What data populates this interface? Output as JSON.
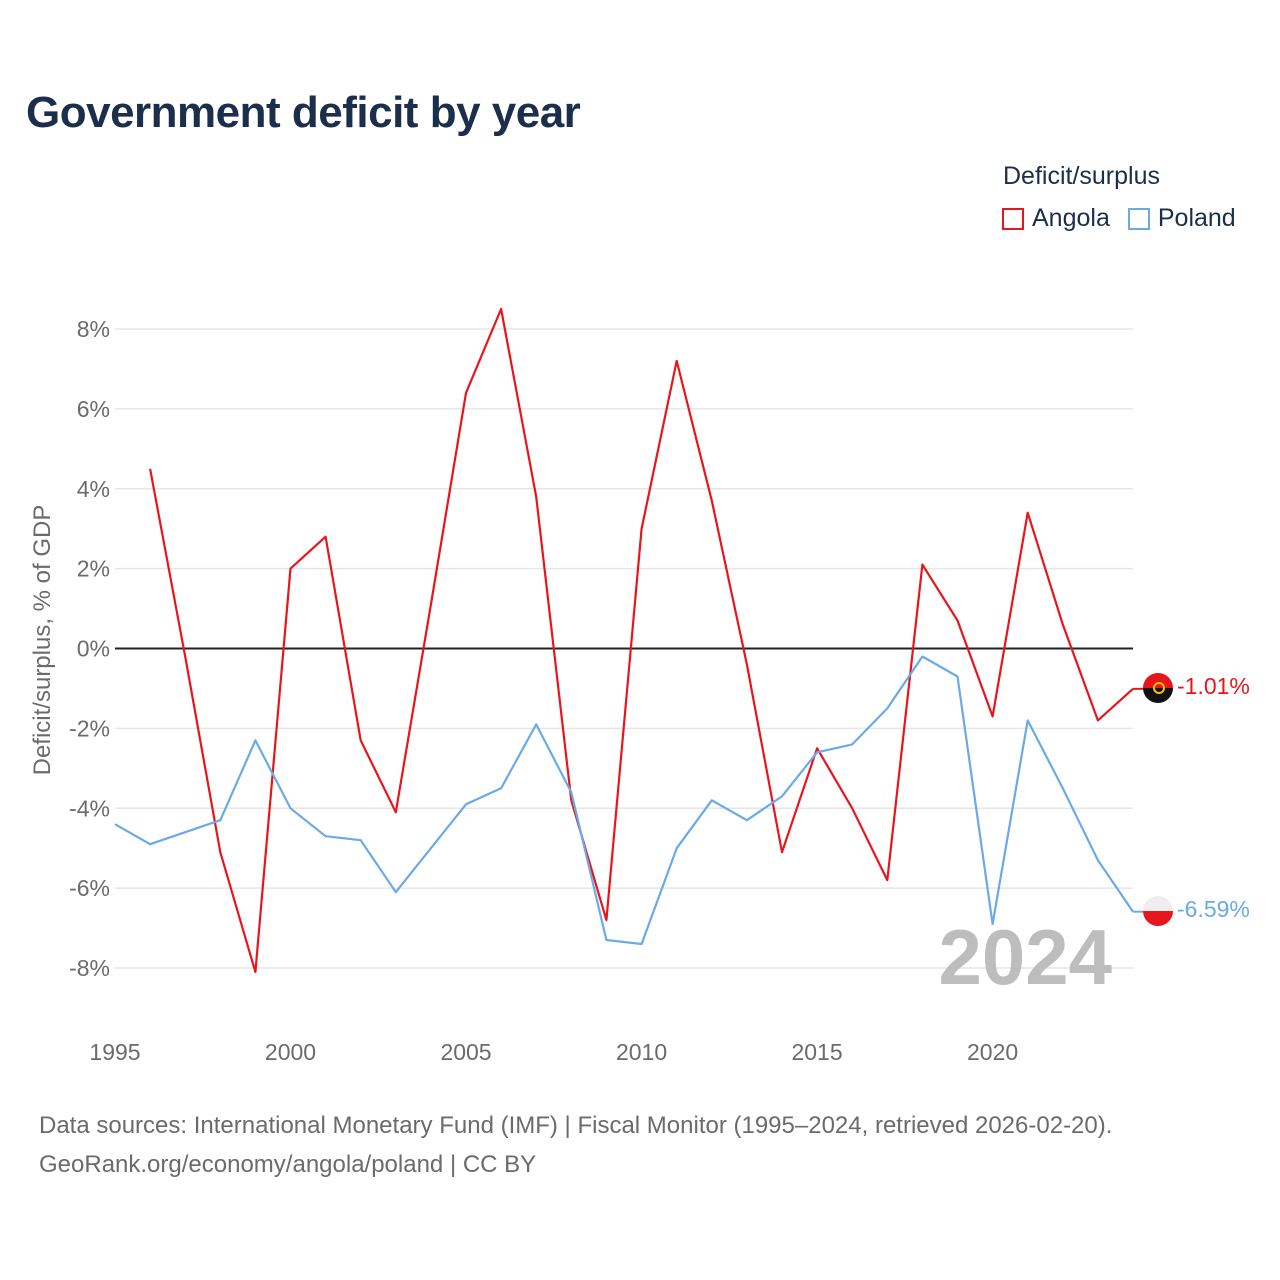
{
  "title": "Government deficit by year",
  "legend": {
    "title": "Deficit/surplus",
    "items": [
      {
        "label": "Angola",
        "color": "#e8161c"
      },
      {
        "label": "Poland",
        "color": "#6aaae6"
      }
    ]
  },
  "footer": {
    "line1": "Data sources: International Monetary Fund (IMF) | Fiscal Monitor (1995–2024, retrieved 2026-02-20).",
    "line2": "GeoRank.org/economy/angola/poland | CC BY"
  },
  "chart_data": {
    "type": "line",
    "title": "Government deficit by year",
    "xlabel": "",
    "ylabel": "Deficit/surplus, % of GDP",
    "xlim": [
      1995,
      2024
    ],
    "ylim": [
      -9,
      8.9
    ],
    "x_ticks": [
      1995,
      2000,
      2005,
      2010,
      2015,
      2020
    ],
    "y_ticks": [
      -8,
      -6,
      -4,
      -2,
      0,
      2,
      4,
      6,
      8
    ],
    "y_tick_labels": [
      "-8%",
      "-6%",
      "-4%",
      "-2%",
      "0%",
      "2%",
      "4%",
      "6%",
      "8%"
    ],
    "current_year_label": "2024",
    "series": [
      {
        "name": "Angola",
        "color": "#e8161c",
        "end_label": "-1.01%",
        "x": [
          1996,
          1997,
          1998,
          1999,
          2000,
          2001,
          2002,
          2003,
          2004,
          2005,
          2006,
          2007,
          2008,
          2009,
          2010,
          2011,
          2012,
          2013,
          2014,
          2015,
          2016,
          2017,
          2018,
          2019,
          2020,
          2021,
          2022,
          2023,
          2024
        ],
        "values": [
          4.5,
          -0.2,
          -5.1,
          -8.1,
          2.0,
          2.8,
          -2.3,
          -4.1,
          1.1,
          6.4,
          8.5,
          3.8,
          -3.8,
          -6.8,
          3.0,
          7.2,
          3.7,
          -0.4,
          -5.1,
          -2.5,
          -4.0,
          -5.8,
          2.1,
          0.7,
          -1.7,
          3.4,
          0.6,
          -1.8,
          -1.01
        ]
      },
      {
        "name": "Poland",
        "color": "#6aaae6",
        "end_label": "-6.59%",
        "x": [
          1995,
          1996,
          1997,
          1998,
          1999,
          2000,
          2001,
          2002,
          2003,
          2004,
          2005,
          2006,
          2007,
          2008,
          2009,
          2010,
          2011,
          2012,
          2013,
          2014,
          2015,
          2016,
          2017,
          2018,
          2019,
          2020,
          2021,
          2022,
          2023,
          2024
        ],
        "values": [
          -4.4,
          -4.9,
          -4.6,
          -4.3,
          -2.3,
          -4.0,
          -4.7,
          -4.8,
          -6.1,
          -5.0,
          -3.9,
          -3.5,
          -1.9,
          -3.6,
          -7.3,
          -7.4,
          -5.0,
          -3.8,
          -4.3,
          -3.7,
          -2.6,
          -2.4,
          -1.5,
          -0.2,
          -0.7,
          -6.9,
          -1.8,
          -3.5,
          -5.3,
          -6.59
        ]
      }
    ]
  }
}
